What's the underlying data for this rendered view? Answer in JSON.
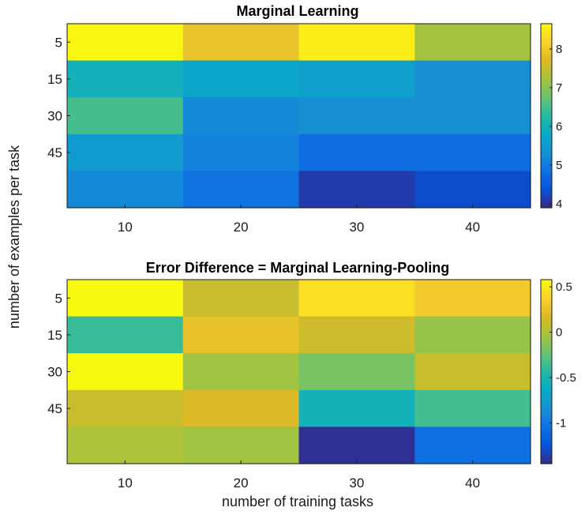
{
  "chart_data": [
    {
      "type": "heatmap",
      "title": "Marginal Learning",
      "x_tick_labels": [
        "10",
        "20",
        "30",
        "40"
      ],
      "y_tick_labels": [
        "5",
        "15",
        "30",
        "45",
        ""
      ],
      "colorbar": {
        "min": 3.9,
        "max": 8.65,
        "ticks": [
          4,
          5,
          6,
          7,
          8
        ],
        "tick_labels": [
          "4",
          "5",
          "6",
          "7",
          "8"
        ]
      },
      "values": [
        [
          8.6,
          7.9,
          8.5,
          7.2
        ],
        [
          6.0,
          5.7,
          5.6,
          5.3
        ],
        [
          6.5,
          5.2,
          5.3,
          5.3
        ],
        [
          5.5,
          5.1,
          4.8,
          4.8
        ],
        [
          5.2,
          4.9,
          4.1,
          4.3
        ]
      ]
    },
    {
      "type": "heatmap",
      "title": "Error Difference = Marginal Learning-Pooling",
      "x_tick_labels": [
        "10",
        "20",
        "30",
        "40"
      ],
      "y_tick_labels": [
        "5",
        "15",
        "30",
        "45",
        ""
      ],
      "colorbar": {
        "min": -1.45,
        "max": 0.58,
        "ticks": [
          0.5,
          0,
          -0.5,
          -1
        ],
        "tick_labels": [
          "0.5",
          "0",
          "-0.5",
          "-1"
        ]
      },
      "values": [
        [
          0.57,
          0.1,
          0.45,
          0.32
        ],
        [
          -0.38,
          0.25,
          0.12,
          -0.08
        ],
        [
          0.57,
          -0.05,
          -0.18,
          0.1
        ],
        [
          0.1,
          0.18,
          -0.55,
          -0.35
        ],
        [
          0.0,
          -0.05,
          -1.42,
          -1.05
        ]
      ]
    }
  ],
  "xlabel": "number of training tasks",
  "ylabel": "number of examples per task"
}
